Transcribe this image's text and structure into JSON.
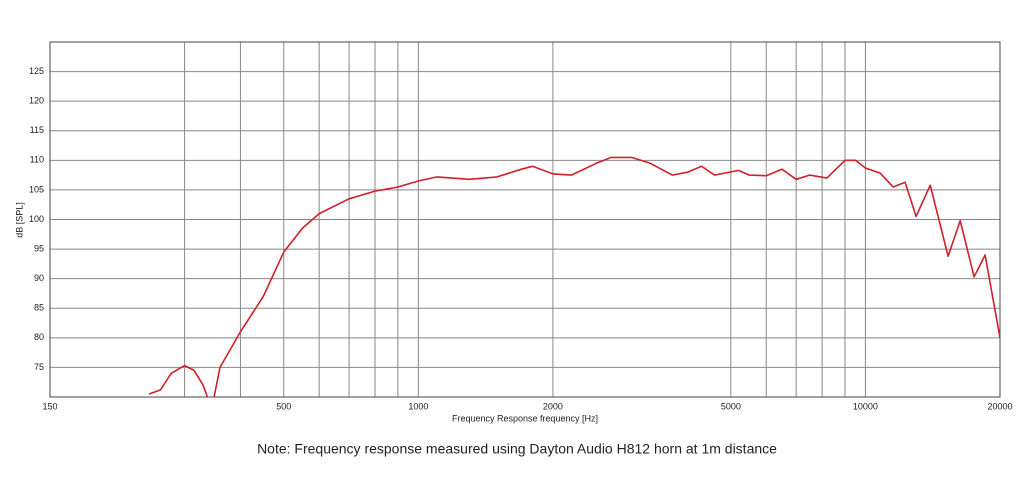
{
  "chart_data": {
    "type": "line",
    "xlabel": "Frequency Response frequency [Hz]",
    "ylabel": "dB [SPL]",
    "note": "Note: Frequency response measured using Dayton Audio H812 horn at 1m distance",
    "xscale": "log",
    "xlim": [
      150,
      20000
    ],
    "ylim": [
      70,
      130
    ],
    "xticks": [
      150,
      500,
      1000,
      2000,
      5000,
      10000,
      20000
    ],
    "xgrid": [
      300,
      400,
      500,
      600,
      700,
      800,
      900,
      1000,
      2000,
      5000,
      6000,
      7000,
      8000,
      9000,
      10000
    ],
    "yticks": [
      75,
      80,
      85,
      90,
      95,
      100,
      105,
      110,
      115,
      120,
      125
    ],
    "grid": true,
    "color": "#d0202a",
    "x": [
      250,
      265,
      280,
      300,
      315,
      330,
      345,
      360,
      400,
      450,
      500,
      550,
      600,
      700,
      800,
      900,
      1000,
      1100,
      1300,
      1500,
      1700,
      1800,
      2000,
      2200,
      2500,
      2700,
      3000,
      3300,
      3700,
      4000,
      4300,
      4600,
      5200,
      5500,
      6000,
      6500,
      7000,
      7500,
      8200,
      9000,
      9500,
      10000,
      10800,
      11530,
      12270,
      12980,
      13960,
      15310,
      16290,
      17500,
      18520,
      20000
    ],
    "values": [
      70.5,
      71.2,
      74,
      75.3,
      74.5,
      72,
      68,
      75,
      81,
      87,
      94.5,
      98.5,
      101,
      103.5,
      104.8,
      105.5,
      106.5,
      107.2,
      106.8,
      107.2,
      108.5,
      109,
      107.7,
      107.5,
      109.5,
      110.5,
      110.5,
      109.5,
      107.5,
      108,
      109,
      107.5,
      108.3,
      107.5,
      107.4,
      108.5,
      106.8,
      107.5,
      107,
      110,
      110,
      108.7,
      107.8,
      105.5,
      106.3,
      100.5,
      105.8,
      93.8,
      99.8,
      90.3,
      94,
      80
    ]
  }
}
